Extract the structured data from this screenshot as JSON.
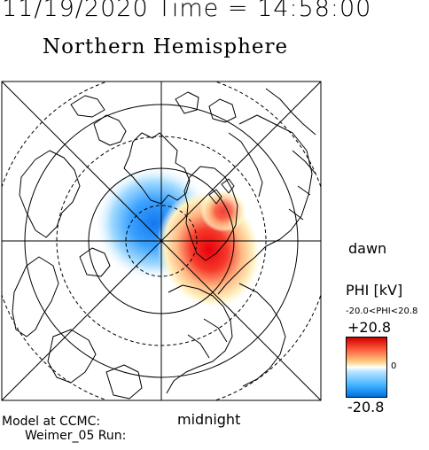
{
  "header": {
    "timestamp": "11/19/2020 Time = 14:58:00",
    "hemisphere": "Northern Hemisphere"
  },
  "map": {
    "local_time_labels": {
      "dawn": "dawn",
      "midnight": "midnight"
    },
    "potential_pattern": {
      "negative_cell": "dusk-side, blue",
      "positive_cell": "dawn-side, red"
    }
  },
  "colorbar": {
    "title": "PHI [kV]",
    "range_text": "-20.0<PHI<20.8",
    "max_label": "+20.8",
    "zero_label": "0",
    "min_label": "-20.8",
    "max_value": 20.8,
    "min_value": -20.8,
    "colors": {
      "max": "#cc0000",
      "mid": "#ffffff",
      "min": "#0070e0"
    }
  },
  "footer": {
    "model_label": "Model at CCMC:",
    "run_label": "Weimer_05 Run:"
  }
}
